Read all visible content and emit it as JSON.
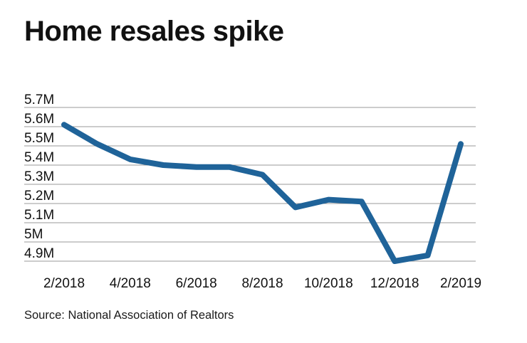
{
  "title": "Home resales spike",
  "source": "Source: National Association of Realtors",
  "colors": {
    "line": "#1f6399",
    "grid": "#9a9a9a",
    "text": "#111111",
    "background": "#ffffff"
  },
  "chart_data": {
    "type": "line",
    "title": "Home resales spike",
    "xlabel": "",
    "ylabel": "",
    "x": [
      "2/2018",
      "3/2018",
      "4/2018",
      "5/2018",
      "6/2018",
      "7/2018",
      "8/2018",
      "9/2018",
      "10/2018",
      "11/2018",
      "12/2018",
      "1/2019",
      "2/2019"
    ],
    "series": [
      {
        "values": [
          5.61,
          5.51,
          5.43,
          5.4,
          5.39,
          5.39,
          5.35,
          5.18,
          5.22,
          5.21,
          4.9,
          4.93,
          5.51
        ]
      }
    ],
    "x_tick_labels": [
      "2/2018",
      "4/2018",
      "6/2018",
      "8/2018",
      "10/2018",
      "12/2018",
      "2/2019"
    ],
    "y_tick_values": [
      4.9,
      5.0,
      5.1,
      5.2,
      5.3,
      5.4,
      5.5,
      5.6,
      5.7
    ],
    "y_tick_labels": [
      "4.9M",
      "5M",
      "5.1M",
      "5.2M",
      "5.3M",
      "5.4M",
      "5.5M",
      "5.6M",
      "5.7M"
    ],
    "ylim": [
      4.9,
      5.7
    ],
    "grid": true,
    "legend": "none"
  }
}
